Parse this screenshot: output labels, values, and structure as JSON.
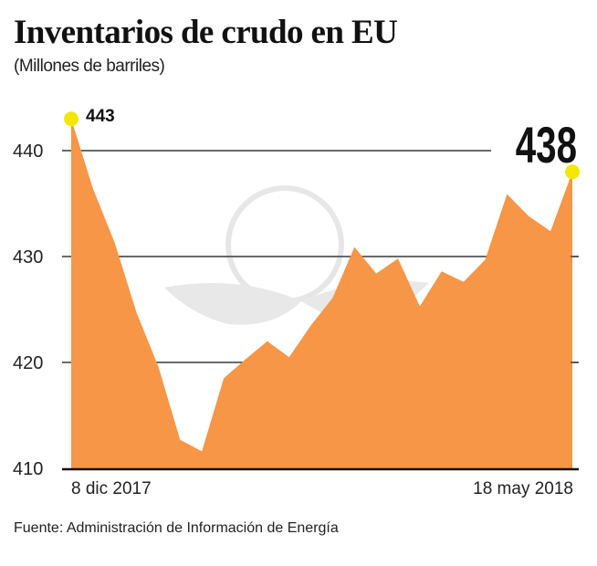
{
  "chart_data": {
    "type": "area",
    "title": "Inventarios de crudo en EU",
    "subtitle": "(Millones de barriles)",
    "x_labels": [
      "8 dic 2017",
      "18 may 2018"
    ],
    "x_start": "8 dic 2017",
    "x_end": "18 may 2018",
    "values": [
      443,
      436.4,
      431.3,
      424.7,
      419.6,
      412.7,
      411.6,
      418.5,
      420.3,
      422,
      420.5,
      423.5,
      426.1,
      430.9,
      428.4,
      429.8,
      425.3,
      428.6,
      427.6,
      429.7,
      435.9,
      433.8,
      432.4,
      438
    ],
    "ylim": [
      410,
      443
    ],
    "y_ticks": [
      "410",
      "420",
      "430",
      "440"
    ],
    "annotations": {
      "first": "443",
      "last": "438"
    },
    "grid": true,
    "fill_color": "#f79646",
    "marker_color": "#f5e600",
    "source": "Fuente: Administración de Información de Energía"
  }
}
